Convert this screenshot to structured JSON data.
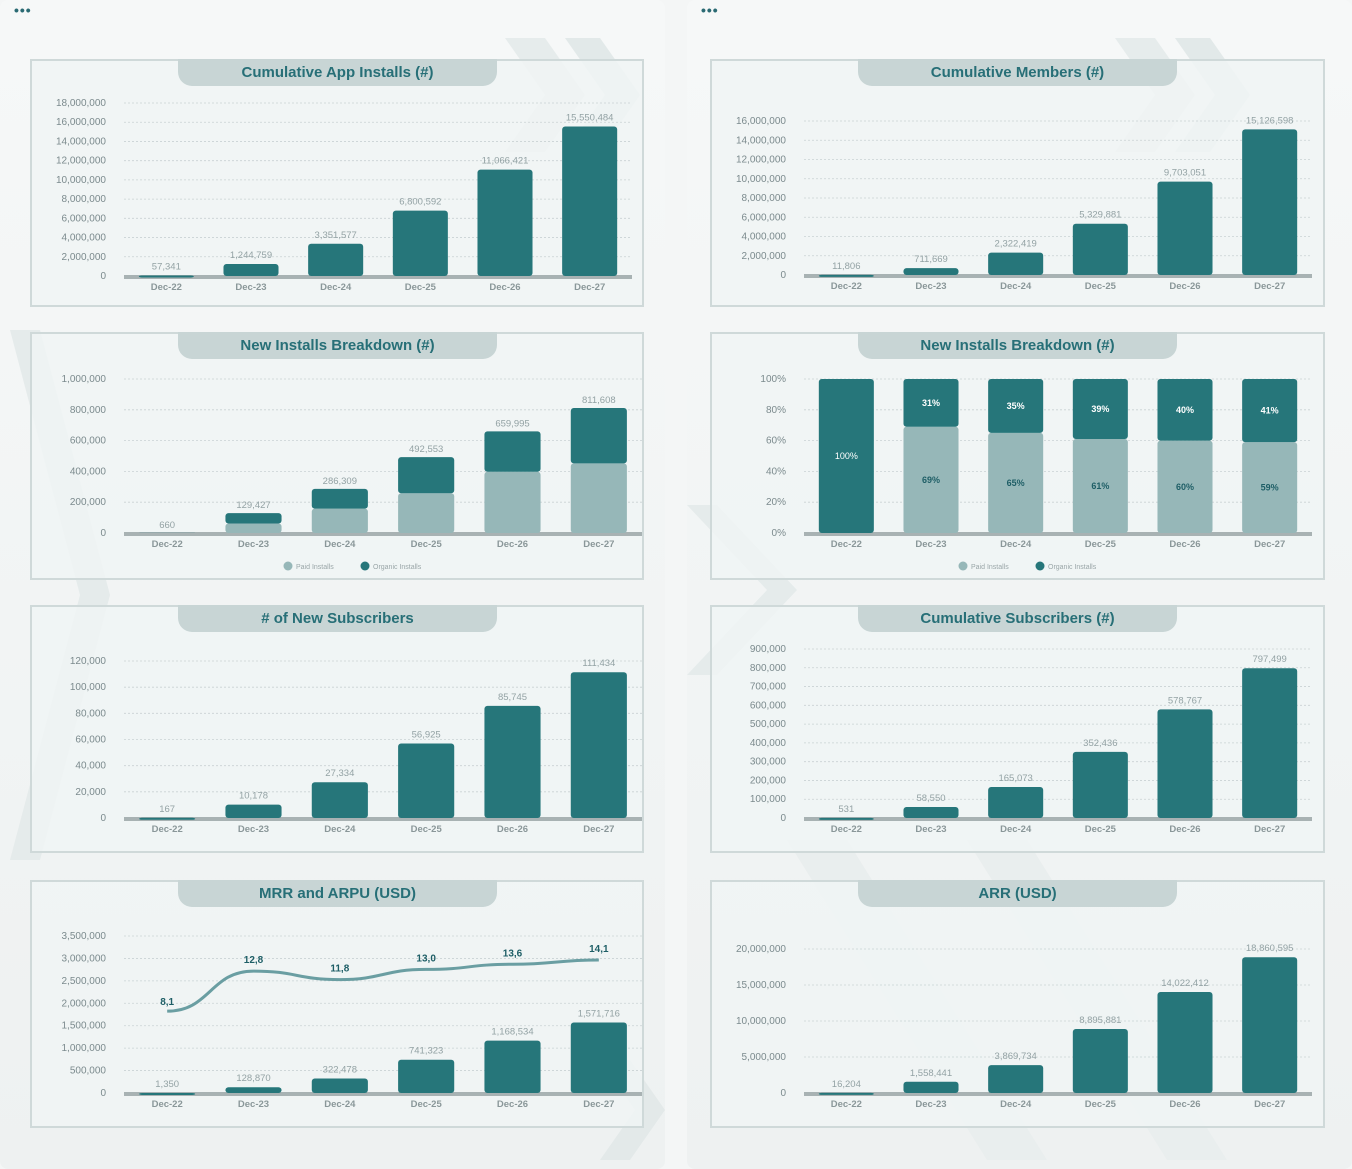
{
  "colors": {
    "bar": "#26767a",
    "light": "#96b7b8",
    "axis": "#a8b2b3",
    "line": "#6a9ea2"
  },
  "header": {
    "menu_icon": "more-dots-icon"
  },
  "charts": {
    "c1": {
      "title": "Cumulative App Installs (#)"
    },
    "c2": {
      "title": "New Installs Breakdown (#)"
    },
    "c3": {
      "title": "# of New Subscribers"
    },
    "c4": {
      "title": "MRR and ARPU (USD)"
    },
    "c5": {
      "title": "Cumulative Members (#)"
    },
    "c6": {
      "title": "New Installs Breakdown (#)"
    },
    "c7": {
      "title": "Cumulative Subscribers (#)"
    },
    "c8": {
      "title": "ARR (USD)"
    }
  },
  "chart_data": [
    {
      "id": "c1",
      "type": "bar",
      "title": "Cumulative App Installs (#)",
      "categories": [
        "Dec-22",
        "Dec-23",
        "Dec-24",
        "Dec-25",
        "Dec-26",
        "Dec-27"
      ],
      "values": [
        57341,
        1244759,
        3351577,
        6800592,
        11066421,
        15550484
      ],
      "labels": [
        "57,341",
        "1,244,759",
        "3,351,577",
        "6,800,592",
        "11,066,421",
        "15,550,484"
      ],
      "ylim": [
        0,
        18000000
      ],
      "yticks": [
        "0",
        "2,000,000",
        "4,000,000",
        "6,000,000",
        "8,000,000",
        "10,000,000",
        "12,000,000",
        "14,000,000",
        "16,000,000",
        "18,000,000"
      ]
    },
    {
      "id": "c2",
      "type": "bar",
      "stacked": true,
      "title": "New Installs Breakdown (#)",
      "categories": [
        "Dec-22",
        "Dec-23",
        "Dec-24",
        "Dec-25",
        "Dec-26",
        "Dec-27"
      ],
      "series": [
        {
          "name": "Paid Installs",
          "values": [
            300,
            62000,
            158000,
            258000,
            398000,
            452000
          ]
        },
        {
          "name": "Organic Installs",
          "values": [
            360,
            67427,
            128309,
            234553,
            261995,
            359608
          ]
        }
      ],
      "totals": [
        "660",
        "129,427",
        "286,309",
        "492,553",
        "659,995",
        "811,608"
      ],
      "ylim": [
        0,
        1000000
      ],
      "yticks": [
        "0",
        "200,000",
        "400,000",
        "600,000",
        "800,000",
        "1,000,000"
      ]
    },
    {
      "id": "c3",
      "type": "bar",
      "title": "# of New Subscribers",
      "categories": [
        "Dec-22",
        "Dec-23",
        "Dec-24",
        "Dec-25",
        "Dec-26",
        "Dec-27"
      ],
      "values": [
        167,
        10178,
        27334,
        56925,
        85745,
        111434
      ],
      "labels": [
        "167",
        "10,178",
        "27,334",
        "56,925",
        "85,745",
        "111,434"
      ],
      "ylim": [
        0,
        120000
      ],
      "yticks": [
        "0",
        "20,000",
        "40,000",
        "60,000",
        "80,000",
        "100,000",
        "120,000"
      ]
    },
    {
      "id": "c4",
      "type": "bar",
      "title": "MRR and ARPU (USD)",
      "categories": [
        "Dec-22",
        "Dec-23",
        "Dec-24",
        "Dec-25",
        "Dec-26",
        "Dec-27"
      ],
      "values": [
        1350,
        128870,
        322478,
        741323,
        1168534,
        1571716
      ],
      "labels": [
        "1,350",
        "128,870",
        "322,478",
        "741,323",
        "1,168,534",
        "1,571,716"
      ],
      "ylim": [
        0,
        3500000
      ],
      "yticks": [
        "0",
        "500,000",
        "1,000,000",
        "1,500,000",
        "2,000,000",
        "2,500,000",
        "3,000,000",
        "3,500,000"
      ],
      "line": {
        "values": [
          8.1,
          12.8,
          11.8,
          13.0,
          13.6,
          14.1
        ],
        "labels": [
          "8,1",
          "12,8",
          "11,8",
          "13,0",
          "13,6",
          "14,1"
        ]
      }
    },
    {
      "id": "c5",
      "type": "bar",
      "title": "Cumulative Members (#)",
      "categories": [
        "Dec-22",
        "Dec-23",
        "Dec-24",
        "Dec-25",
        "Dec-26",
        "Dec-27"
      ],
      "values": [
        11806,
        711669,
        2322419,
        5329881,
        9703051,
        15126598
      ],
      "labels": [
        "11,806",
        "711,669",
        "2,322,419",
        "5,329,881",
        "9,703,051",
        "15,126,598"
      ],
      "ylim": [
        0,
        16000000
      ],
      "yticks": [
        "0",
        "2,000,000",
        "4,000,000",
        "6,000,000",
        "8,000,000",
        "10,000,000",
        "12,000,000",
        "14,000,000",
        "16,000,000"
      ]
    },
    {
      "id": "c6",
      "type": "bar",
      "stacked": true,
      "percent": true,
      "title": "New Installs Breakdown (#)",
      "categories": [
        "Dec-22",
        "Dec-23",
        "Dec-24",
        "Dec-25",
        "Dec-26",
        "Dec-27"
      ],
      "series": [
        {
          "name": "Paid Installs",
          "values": [
            0,
            69,
            65,
            61,
            60,
            59
          ]
        },
        {
          "name": "Organic Installs",
          "values": [
            100,
            31,
            35,
            39,
            40,
            41
          ]
        }
      ],
      "ylim": [
        0,
        100
      ],
      "yticks": [
        "0%",
        "20%",
        "40%",
        "60%",
        "80%",
        "100%"
      ]
    },
    {
      "id": "c7",
      "type": "bar",
      "title": "Cumulative Subscribers (#)",
      "categories": [
        "Dec-22",
        "Dec-23",
        "Dec-24",
        "Dec-25",
        "Dec-26",
        "Dec-27"
      ],
      "values": [
        531,
        58550,
        165073,
        352436,
        578767,
        797499
      ],
      "labels": [
        "531",
        "58,550",
        "165,073",
        "352,436",
        "578,767",
        "797,499"
      ],
      "ylim": [
        0,
        900000
      ],
      "yticks": [
        "0",
        "100,000",
        "200,000",
        "300,000",
        "400,000",
        "500,000",
        "600,000",
        "700,000",
        "800,000",
        "900,000"
      ]
    },
    {
      "id": "c8",
      "type": "bar",
      "title": "ARR (USD)",
      "categories": [
        "Dec-22",
        "Dec-23",
        "Dec-24",
        "Dec-25",
        "Dec-26",
        "Dec-27"
      ],
      "values": [
        16204,
        1558441,
        3869734,
        8895881,
        14022412,
        18860595
      ],
      "labels": [
        "16,204",
        "1,558,441",
        "3,869,734",
        "8,895,881",
        "14,022,412",
        "18,860,595"
      ],
      "ylim": [
        0,
        20000000
      ],
      "yticks": [
        "0",
        "5,000,000",
        "10,000,000",
        "15,000,000",
        "20,000,000"
      ]
    }
  ]
}
